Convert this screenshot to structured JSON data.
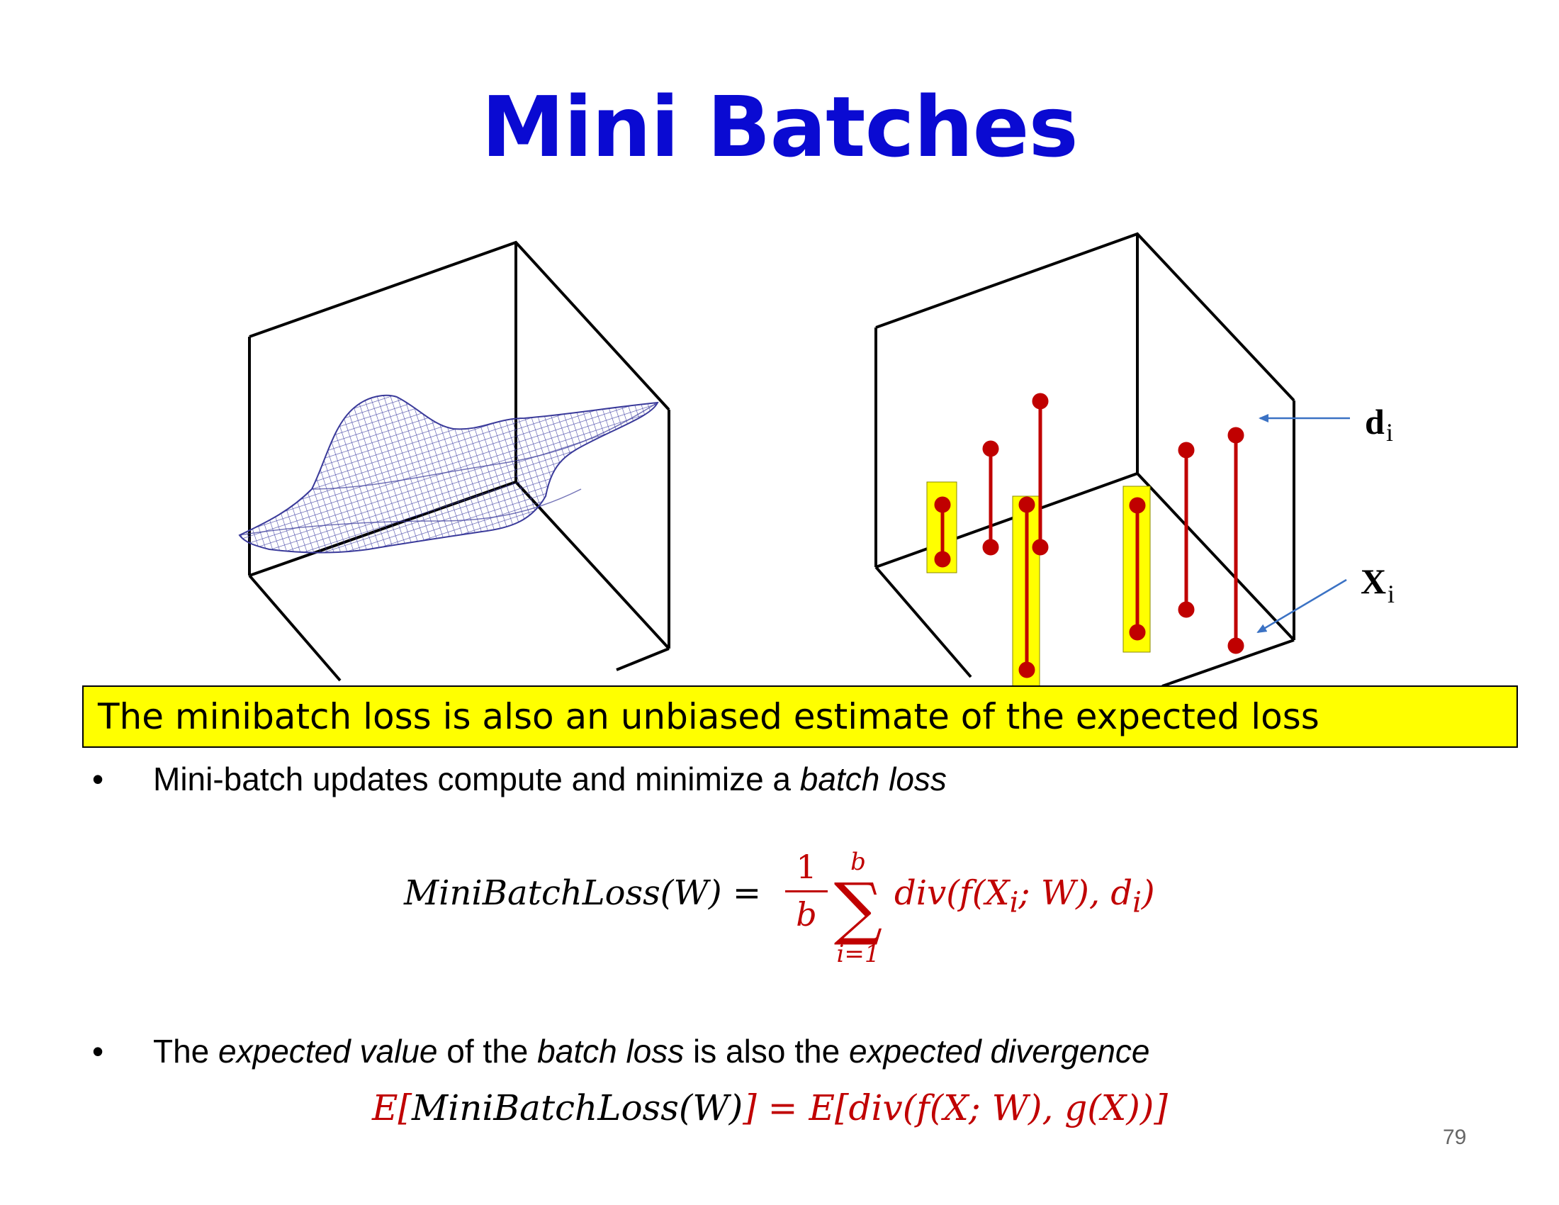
{
  "slide": {
    "title": "Mini Batches",
    "page_number": "79"
  },
  "figure": {
    "label_d": "d",
    "label_d_sub": "i",
    "label_x": "X",
    "label_x_sub": "i",
    "colors": {
      "surface": "#2a2a8c",
      "samples": "#c00000",
      "highlight": "#ffff00",
      "arrows": "#3b72c4"
    }
  },
  "banner": {
    "text": "The minibatch loss is also an unbiased estimate of the expected loss"
  },
  "bullets": [
    {
      "marker": "•",
      "parts": [
        {
          "text": "Mini-batch updates compute and minimize a ",
          "italic": false
        },
        {
          "text": "batch loss",
          "italic": true
        }
      ]
    },
    {
      "marker": "•",
      "parts": [
        {
          "text": "The ",
          "italic": false
        },
        {
          "text": "expected value",
          "italic": true
        },
        {
          "text": " of the ",
          "italic": false
        },
        {
          "text": "batch loss",
          "italic": true
        },
        {
          "text": " is also the ",
          "italic": false
        },
        {
          "text": "expected divergence",
          "italic": true
        }
      ]
    }
  ],
  "equation1": {
    "lhs": "MiniBatchLoss(W) =",
    "frac_num": "1",
    "frac_den": "b",
    "sum_upper": "b",
    "sum_symbol": "∑",
    "sum_lower": "i=1",
    "rhs_a": "div(f(X",
    "rhs_sub1": "i",
    "rhs_b": "; W), d",
    "rhs_sub2": "i",
    "rhs_c": ")"
  },
  "equation2": {
    "e1": "E[",
    "mid": "MiniBatchLoss(W)",
    "e2": "] = E[div(f(X; W), g(X))]"
  }
}
